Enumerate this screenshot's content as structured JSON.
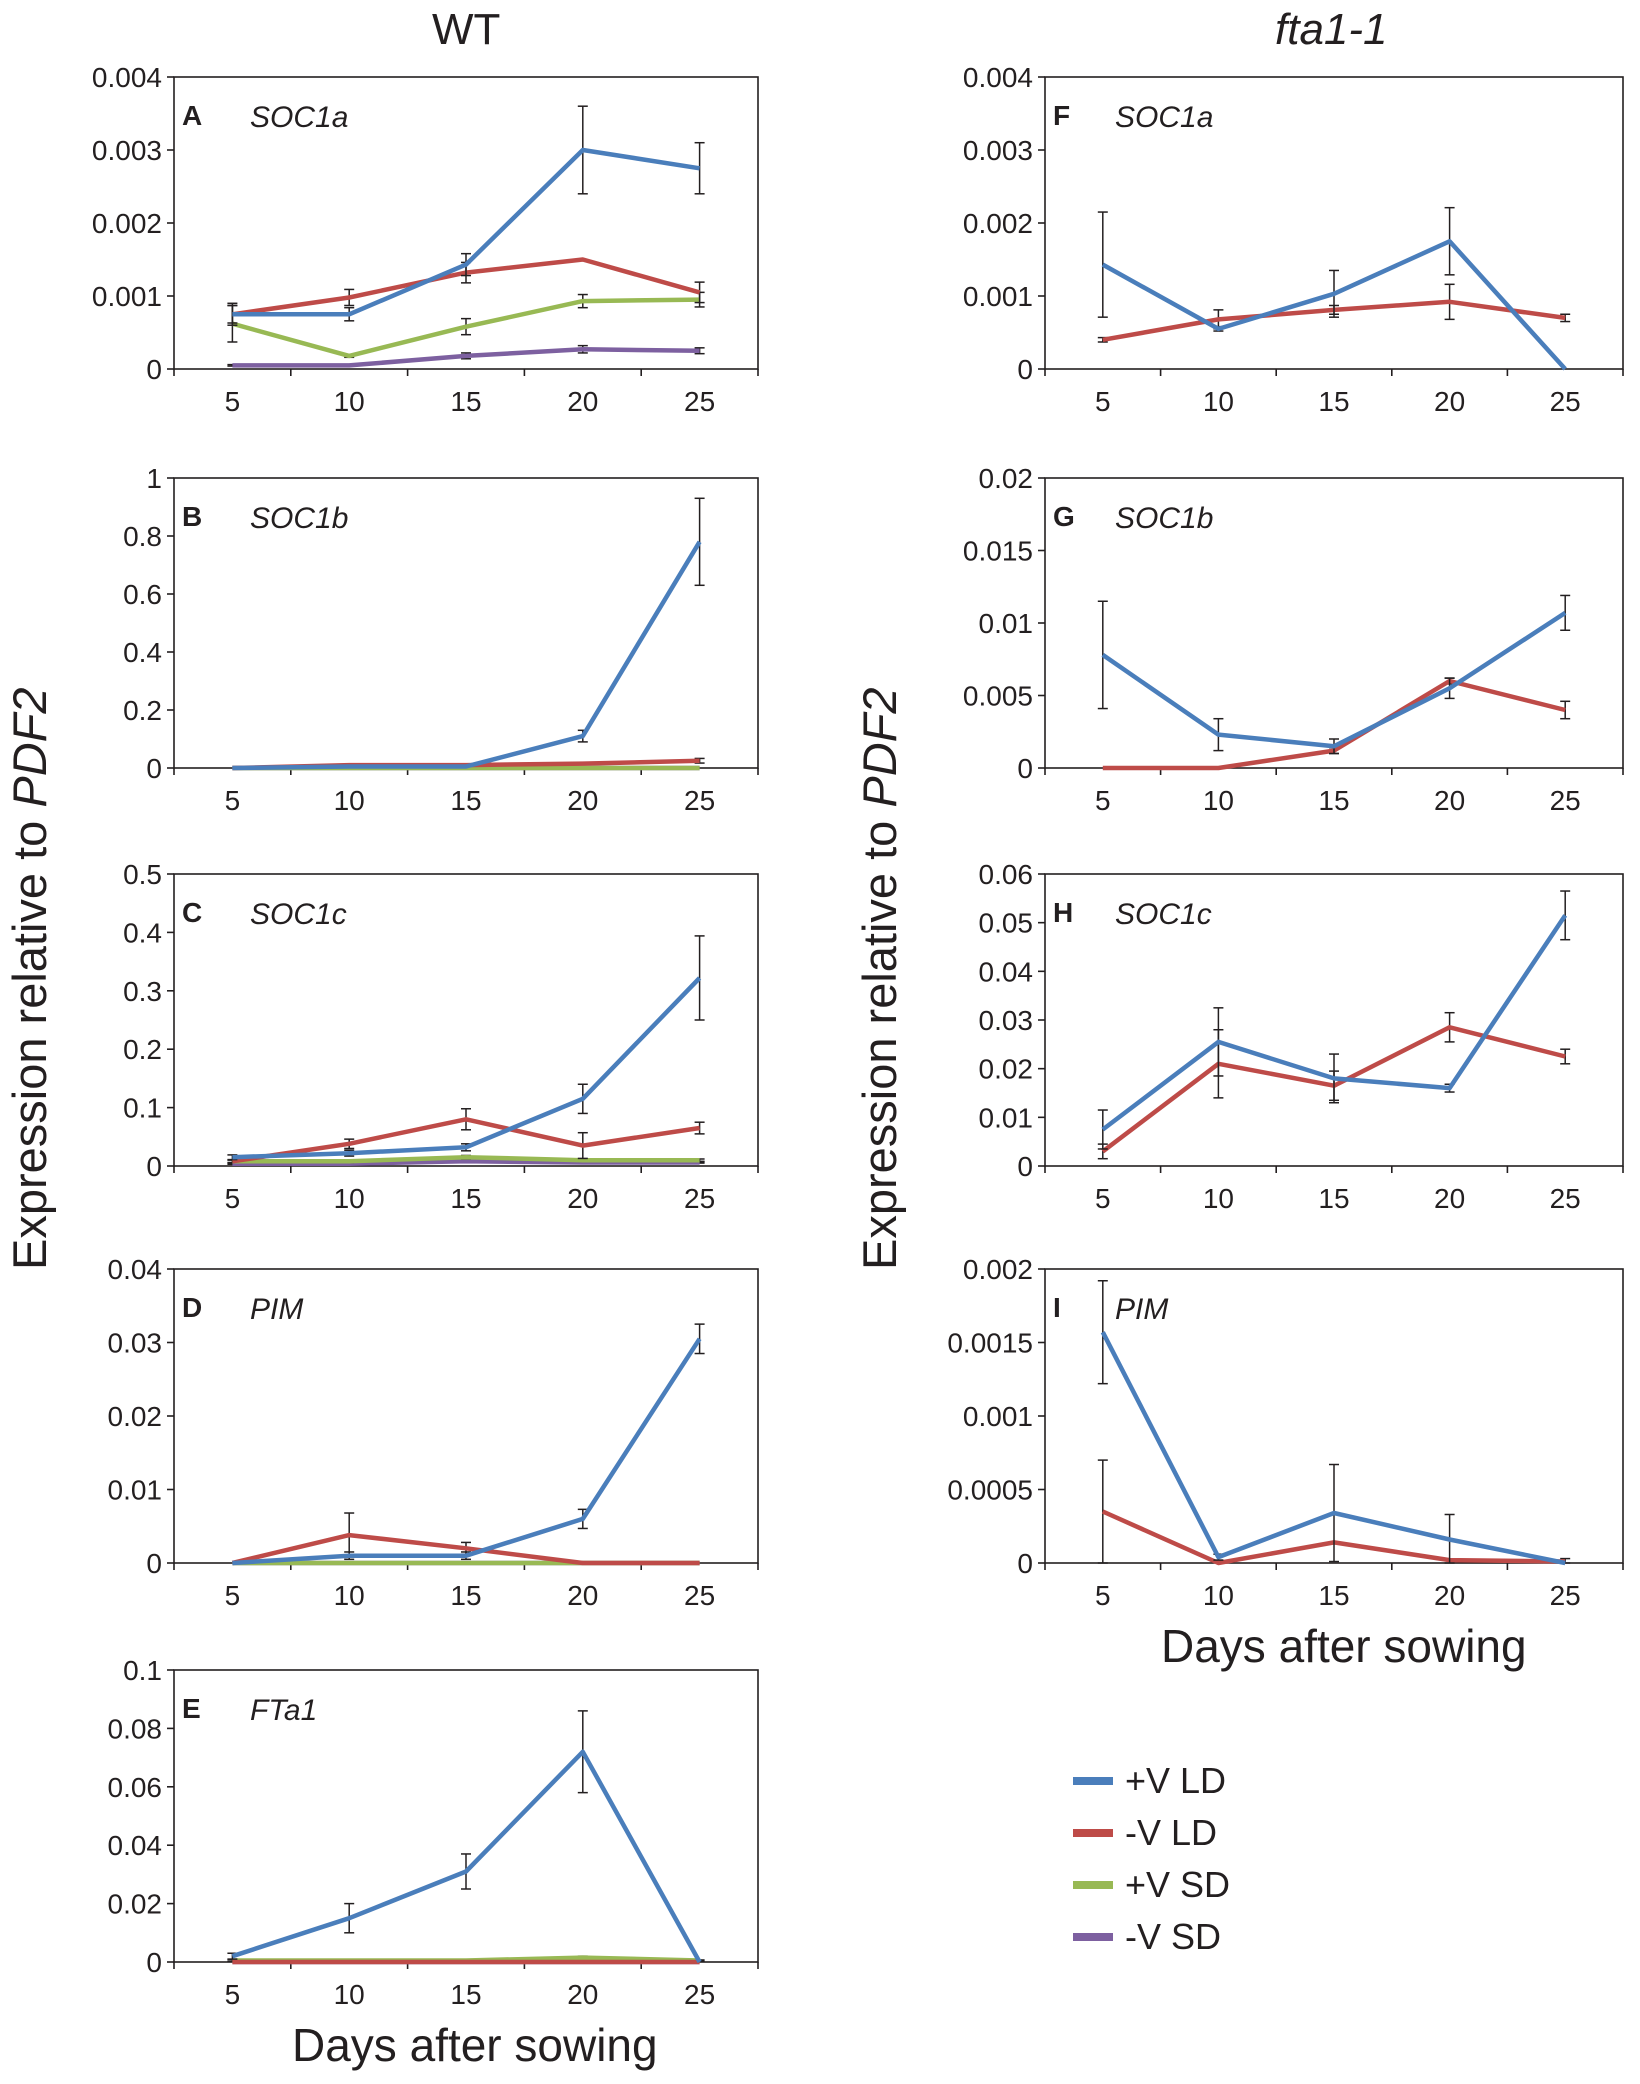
{
  "titles": {
    "left": "WT",
    "right": "fta1-1"
  },
  "y_axis_label": {
    "prefix": "Expression relative to ",
    "gene": "PDF2"
  },
  "x_axis_label": "Days after sowing",
  "colors": {
    "+V LD": "#4a7ebb",
    "-V LD": "#be4b48",
    "+V SD": "#98b954",
    "-V SD": "#7d60a0"
  },
  "legend": [
    "+V LD",
    "-V LD",
    "+V SD",
    "-V SD"
  ],
  "chart_data": [
    {
      "id": "A",
      "type": "line",
      "gene": "SOC1a",
      "categories": [
        5,
        10,
        15,
        20,
        25
      ],
      "ylim": [
        0,
        0.004
      ],
      "yticks": [
        0,
        0.001,
        0.002,
        0.003,
        0.004
      ],
      "ytick_labels": [
        "0",
        "0.001",
        "0.002",
        "0.003",
        "0.004"
      ],
      "series": [
        {
          "name": "+V LD",
          "values": [
            0.00075,
            0.00075,
            0.00143,
            0.003,
            0.00275
          ],
          "errors": [
            0.00012,
            9e-05,
            0.00015,
            0.0006,
            0.00035
          ]
        },
        {
          "name": "-V LD",
          "values": [
            0.00075,
            0.00098,
            0.00132,
            0.0015,
            0.00105
          ],
          "errors": [
            0.00015,
            0.00011,
            0.00014,
            0,
            0.00014
          ]
        },
        {
          "name": "+V SD",
          "values": [
            0.00062,
            0.00018,
            0.00058,
            0.00093,
            0.00095
          ],
          "errors": [
            0.00025,
            2e-05,
            0.00011,
            9e-05,
            0.0001
          ]
        },
        {
          "name": "-V SD",
          "values": [
            5e-05,
            5e-05,
            0.00018,
            0.00027,
            0.00025
          ],
          "errors": [
            1e-05,
            1e-05,
            4e-05,
            5e-05,
            4e-05
          ]
        }
      ]
    },
    {
      "id": "B",
      "type": "line",
      "gene": "SOC1b",
      "categories": [
        5,
        10,
        15,
        20,
        25
      ],
      "ylim": [
        0,
        1
      ],
      "yticks": [
        0,
        0.2,
        0.4,
        0.6,
        0.8,
        1
      ],
      "ytick_labels": [
        "0",
        "0.2",
        "0.4",
        "0.6",
        "0.8",
        "1"
      ],
      "series": [
        {
          "name": "+V LD",
          "values": [
            0,
            0.005,
            0.005,
            0.11,
            0.78
          ],
          "errors": [
            0,
            0,
            0,
            0.02,
            0.15
          ]
        },
        {
          "name": "-V LD",
          "values": [
            0,
            0.01,
            0.01,
            0.015,
            0.025
          ],
          "errors": [
            0,
            0,
            0,
            0,
            0.008
          ]
        },
        {
          "name": "+V SD",
          "values": [
            0,
            0,
            0,
            0,
            0
          ],
          "errors": [
            0,
            0,
            0,
            0,
            0
          ]
        },
        {
          "name": "-V SD",
          "values": [
            0,
            0,
            0,
            0,
            0
          ],
          "errors": [
            0,
            0,
            0,
            0,
            0
          ]
        }
      ]
    },
    {
      "id": "C",
      "type": "line",
      "gene": "SOC1c",
      "categories": [
        5,
        10,
        15,
        20,
        25
      ],
      "ylim": [
        0,
        0.5
      ],
      "yticks": [
        0,
        0.1,
        0.2,
        0.3,
        0.4,
        0.5
      ],
      "ytick_labels": [
        "0",
        "0.1",
        "0.2",
        "0.3",
        "0.4",
        "0.5"
      ],
      "series": [
        {
          "name": "+V LD",
          "values": [
            0.015,
            0.022,
            0.032,
            0.115,
            0.322
          ],
          "errors": [
            0.004,
            0.005,
            0.006,
            0.025,
            0.072
          ]
        },
        {
          "name": "-V LD",
          "values": [
            0.008,
            0.038,
            0.08,
            0.035,
            0.065
          ],
          "errors": [
            0,
            0.008,
            0.018,
            0.022,
            0.01
          ]
        },
        {
          "name": "+V SD",
          "values": [
            0.008,
            0.008,
            0.015,
            0.01,
            0.01
          ],
          "errors": [
            0.002,
            0.002,
            0.003,
            0.002,
            0.002
          ]
        },
        {
          "name": "-V SD",
          "values": [
            0.004,
            0.004,
            0.008,
            0.006,
            0.006
          ],
          "errors": [
            0.001,
            0.001,
            0.002,
            0.001,
            0.001
          ]
        }
      ]
    },
    {
      "id": "D",
      "type": "line",
      "gene": "PIM",
      "categories": [
        5,
        10,
        15,
        20,
        25
      ],
      "ylim": [
        0,
        0.04
      ],
      "yticks": [
        0,
        0.01,
        0.02,
        0.03,
        0.04
      ],
      "ytick_labels": [
        "0",
        "0.01",
        "0.02",
        "0.03",
        "0.04"
      ],
      "series": [
        {
          "name": "+V LD",
          "values": [
            0,
            0.001,
            0.001,
            0.006,
            0.0305
          ],
          "errors": [
            0,
            0.0005,
            0.0005,
            0.0013,
            0.002
          ]
        },
        {
          "name": "-V LD",
          "values": [
            0,
            0.0038,
            0.002,
            0,
            0
          ],
          "errors": [
            0,
            0.003,
            0.0008,
            0,
            0
          ]
        },
        {
          "name": "+V SD",
          "values": [
            0,
            0,
            0,
            0,
            0
          ],
          "errors": [
            0,
            0,
            0,
            0,
            0
          ]
        },
        {
          "name": "-V SD",
          "values": [
            0,
            0,
            0,
            0,
            0
          ],
          "errors": [
            0,
            0,
            0,
            0,
            0
          ]
        }
      ]
    },
    {
      "id": "E",
      "type": "line",
      "gene": "FTa1",
      "categories": [
        5,
        10,
        15,
        20,
        25
      ],
      "ylim": [
        0,
        0.1
      ],
      "yticks": [
        0,
        0.02,
        0.04,
        0.06,
        0.08,
        0.1
      ],
      "ytick_labels": [
        "0",
        "0.02",
        "0.04",
        "0.06",
        "0.08",
        "0.1"
      ],
      "series": [
        {
          "name": "+V LD",
          "values": [
            0.002,
            0.015,
            0.031,
            0.072,
            0
          ],
          "errors": [
            0.001,
            0.005,
            0.006,
            0.014,
            0
          ]
        },
        {
          "name": "-V LD",
          "values": [
            0,
            0,
            0,
            0,
            0
          ],
          "errors": [
            0,
            0,
            0,
            0,
            0
          ]
        },
        {
          "name": "+V SD",
          "values": [
            0.0005,
            0.0005,
            0.0005,
            0.0015,
            0.0005
          ],
          "errors": [
            0.0003,
            0.0002,
            0.0002,
            0.0005,
            0.0002
          ]
        },
        {
          "name": "-V SD",
          "values": [
            0,
            0,
            0,
            0,
            0
          ],
          "errors": [
            0,
            0,
            0,
            0,
            0
          ]
        }
      ]
    },
    {
      "id": "F",
      "type": "line",
      "gene": "SOC1a",
      "categories": [
        5,
        10,
        15,
        20,
        25
      ],
      "ylim": [
        0,
        0.004
      ],
      "yticks": [
        0,
        0.001,
        0.002,
        0.003,
        0.004
      ],
      "ytick_labels": [
        "0",
        "0.001",
        "0.002",
        "0.003",
        "0.004"
      ],
      "series": [
        {
          "name": "+V LD",
          "values": [
            0.00143,
            0.00055,
            0.00103,
            0.00175,
            0
          ],
          "errors": [
            0.00072,
            3e-05,
            0.00032,
            0.00046,
            0
          ]
        },
        {
          "name": "-V LD",
          "values": [
            0.0004,
            0.00068,
            0.00081,
            0.00092,
            0.0007
          ],
          "errors": [
            3e-05,
            0.00013,
            6e-05,
            0.00024,
            5e-05
          ]
        }
      ]
    },
    {
      "id": "G",
      "type": "line",
      "gene": "SOC1b",
      "categories": [
        5,
        10,
        15,
        20,
        25
      ],
      "ylim": [
        0,
        0.02
      ],
      "yticks": [
        0,
        0.005,
        0.01,
        0.015,
        0.02
      ],
      "ytick_labels": [
        "0",
        "0.005",
        "0.01",
        "0.015",
        "0.02"
      ],
      "series": [
        {
          "name": "+V LD",
          "values": [
            0.0078,
            0.0023,
            0.0015,
            0.0055,
            0.0107
          ],
          "errors": [
            0.0037,
            0.0011,
            0.0005,
            0.0007,
            0.0012
          ]
        },
        {
          "name": "-V LD",
          "values": [
            0,
            0,
            0.0012,
            0.006,
            0.004
          ],
          "errors": [
            0,
            0,
            0.0002,
            0.0002,
            0.0006
          ]
        }
      ]
    },
    {
      "id": "H",
      "type": "line",
      "gene": "SOC1c",
      "categories": [
        5,
        10,
        15,
        20,
        25
      ],
      "ylim": [
        0,
        0.06
      ],
      "yticks": [
        0,
        0.01,
        0.02,
        0.03,
        0.04,
        0.05,
        0.06
      ],
      "ytick_labels": [
        "0",
        "0.01",
        "0.02",
        "0.03",
        "0.04",
        "0.05",
        "0.06"
      ],
      "series": [
        {
          "name": "+V LD",
          "values": [
            0.0075,
            0.0255,
            0.018,
            0.016,
            0.0515
          ],
          "errors": [
            0.004,
            0.007,
            0.005,
            0.0008,
            0.005
          ]
        },
        {
          "name": "-V LD",
          "values": [
            0.003,
            0.021,
            0.0165,
            0.0285,
            0.0225
          ],
          "errors": [
            0.0015,
            0.007,
            0.003,
            0.003,
            0.0015
          ]
        }
      ]
    },
    {
      "id": "I",
      "type": "line",
      "gene": "PIM",
      "categories": [
        5,
        10,
        15,
        20,
        25
      ],
      "ylim": [
        0,
        0.002
      ],
      "yticks": [
        0,
        0.0005,
        0.001,
        0.0015,
        0.002
      ],
      "ytick_labels": [
        "0",
        "0.0005",
        "0.001",
        "0.0015",
        "0.002"
      ],
      "series": [
        {
          "name": "+V LD",
          "values": [
            0.00157,
            4e-05,
            0.00034,
            0.00016,
            0
          ],
          "errors": [
            0.00035,
            2e-05,
            0.00033,
            0.00017,
            0
          ]
        },
        {
          "name": "-V LD",
          "values": [
            0.00035,
            0,
            0.00014,
            2e-05,
            1e-05
          ],
          "errors": [
            0.00035,
            0,
            0,
            0,
            2e-05
          ]
        }
      ]
    }
  ]
}
